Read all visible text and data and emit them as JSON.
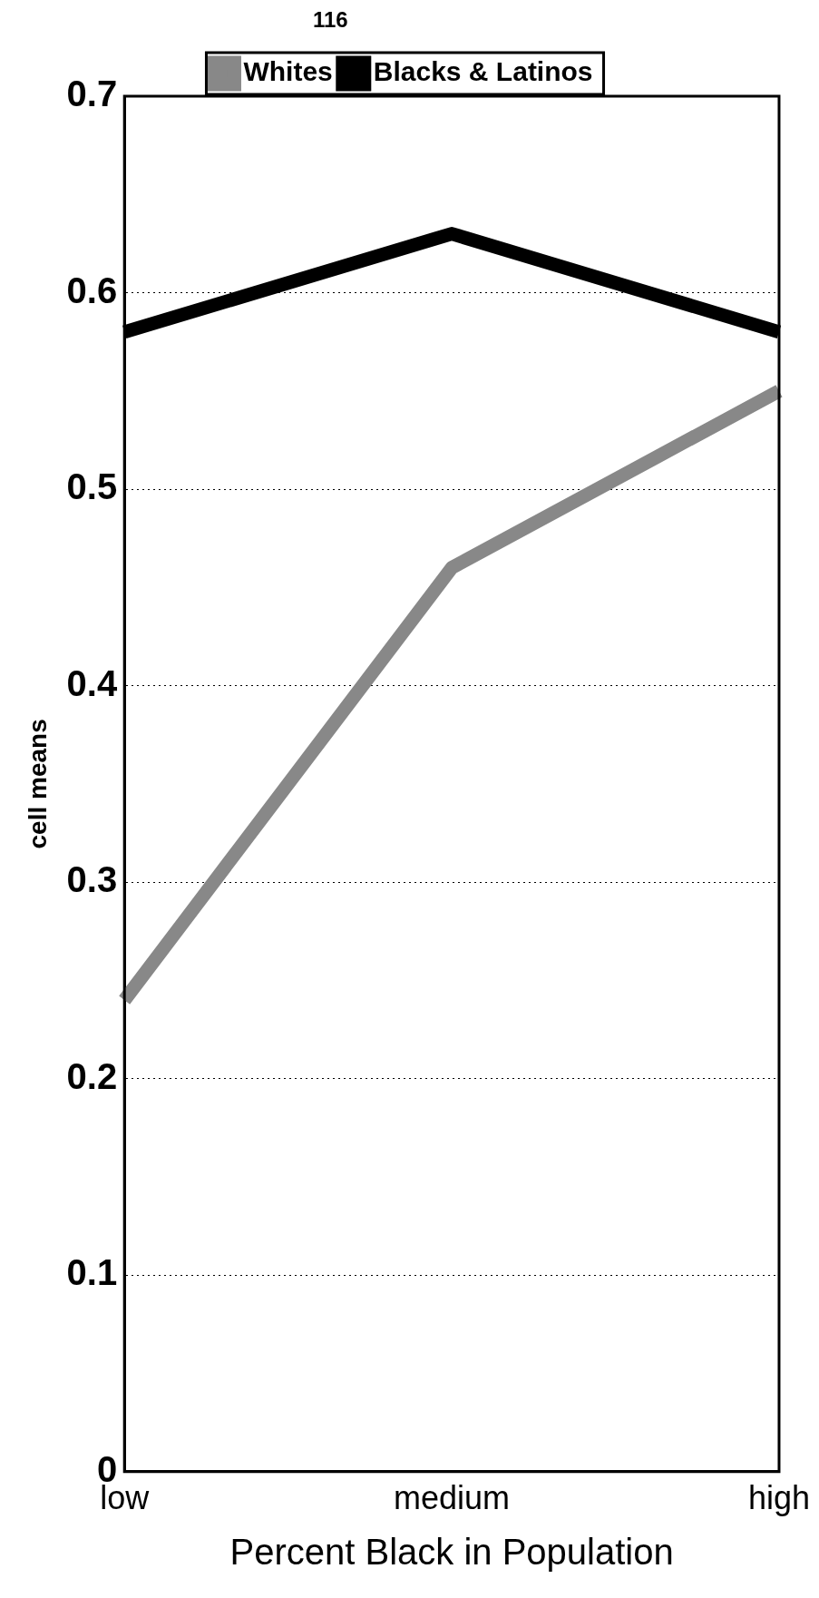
{
  "chart_data": {
    "type": "line",
    "xlabel": "Percent Black in Population",
    "ylabel": "cell means",
    "categories": [
      "low",
      "medium",
      "high"
    ],
    "series": [
      {
        "name": "Whites",
        "color": "#888888",
        "values": [
          0.24,
          0.46,
          0.55
        ]
      },
      {
        "name": "Blacks & Latinos",
        "color": "#000000",
        "values": [
          0.58,
          0.63,
          0.58
        ]
      }
    ],
    "ylim": [
      0,
      0.7
    ],
    "yticks": [
      0,
      0.1,
      0.2,
      0.3,
      0.4,
      0.5,
      0.6,
      0.7
    ],
    "grid": "y",
    "legend": "top",
    "marker": "none",
    "line_style": "solid",
    "annotations": [
      "116"
    ]
  }
}
